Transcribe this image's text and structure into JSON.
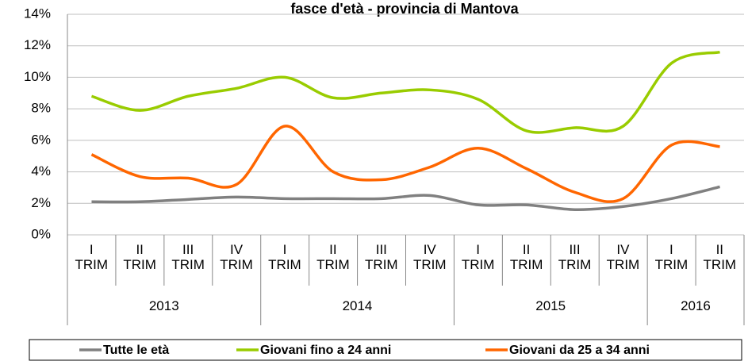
{
  "chart_data": {
    "type": "line",
    "title": "fasce d'età - provincia di Mantova",
    "groups": [
      {
        "name": "2013",
        "categories": [
          "I TRIM",
          "II TRIM",
          "III TRIM",
          "IV TRIM"
        ]
      },
      {
        "name": "2014",
        "categories": [
          "I TRIM",
          "II TRIM",
          "III TRIM",
          "IV TRIM"
        ]
      },
      {
        "name": "2015",
        "categories": [
          "I TRIM",
          "II TRIM",
          "III TRIM",
          "IV TRIM"
        ]
      },
      {
        "name": "2016",
        "categories": [
          "I TRIM",
          "II TRIM"
        ]
      }
    ],
    "series": [
      {
        "name": "Tutte le età",
        "color": "#808080",
        "values": [
          2.1,
          2.1,
          2.25,
          2.4,
          2.3,
          2.3,
          2.3,
          2.5,
          1.9,
          1.9,
          1.6,
          1.8,
          2.3,
          3.05
        ]
      },
      {
        "name": "Giovani fino a 24 anni",
        "color": "#99cc00",
        "values": [
          8.8,
          7.9,
          8.8,
          9.3,
          10.0,
          8.7,
          9.0,
          9.2,
          8.6,
          6.6,
          6.8,
          6.9,
          10.9,
          11.6
        ]
      },
      {
        "name": "Giovani da 25 a 34 anni",
        "color": "#ff6600",
        "values": [
          5.1,
          3.7,
          3.6,
          3.2,
          6.9,
          4.0,
          3.5,
          4.3,
          5.5,
          4.2,
          2.7,
          2.3,
          5.7,
          5.6
        ]
      }
    ],
    "ylim": [
      0,
      14
    ],
    "yticks": [
      {
        "value": 0,
        "label": "0%"
      },
      {
        "value": 2,
        "label": "2%"
      },
      {
        "value": 4,
        "label": "4%"
      },
      {
        "value": 6,
        "label": "6%"
      },
      {
        "value": 8,
        "label": "8%"
      },
      {
        "value": 10,
        "label": "10%"
      },
      {
        "value": 12,
        "label": "12%"
      },
      {
        "value": 14,
        "label": "14%"
      }
    ],
    "grid": true
  }
}
